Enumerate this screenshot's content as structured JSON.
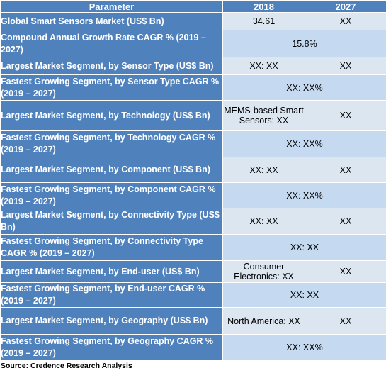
{
  "table": {
    "columns": [
      "Parameter",
      "2018",
      "2027"
    ],
    "rows": [
      {
        "parameter": "Global Smart Sensors Market (US$ Bn)",
        "y2018": "34.61",
        "y2027": "XX"
      },
      {
        "parameter": "Compound Annual Growth Rate CAGR % (2019 – 2027)",
        "merged": "15.8%"
      },
      {
        "parameter": "Largest Market Segment, by Sensor Type (US$ Bn)",
        "y2018": "XX: XX",
        "y2027": "XX"
      },
      {
        "parameter": "Fastest Growing Segment, by Sensor Type CAGR % (2019 – 2027)",
        "merged": "XX: XX%"
      },
      {
        "parameter": "Largest Market Segment, by Technology (US$ Bn)",
        "y2018": "MEMS-based Smart Sensors: XX",
        "y2027": "XX"
      },
      {
        "parameter": "Fastest Growing Segment, by Technology CAGR % (2019 – 2027)",
        "merged": "XX: XX%"
      },
      {
        "parameter": "Largest Market Segment, by Component (US$ Bn)",
        "y2018": "XX: XX",
        "y2027": "XX"
      },
      {
        "parameter": "Fastest Growing Segment, by Component CAGR % (2019 – 2027)",
        "merged": "XX: XX%"
      },
      {
        "parameter": "Largest Market Segment, by Connectivity Type (US$ Bn)",
        "y2018": "XX: XX",
        "y2027": "XX"
      },
      {
        "parameter": "Fastest Growing Segment, by Connectivity Type CAGR % (2019 – 2027)",
        "merged": "XX: XX"
      },
      {
        "parameter": "Largest Market Segment, by End-user (US$ Bn)",
        "y2018": "Consumer Electronics: XX",
        "y2027": "XX"
      },
      {
        "parameter": "Fastest Growing Segment, by End-user CAGR % (2019 – 2027)",
        "merged": "XX: XX"
      },
      {
        "parameter": "Largest Market Segment, by Geography (US$ Bn)",
        "y2018": "North America: XX",
        "y2027": "XX"
      },
      {
        "parameter": "Fastest Growing Segment, by Geography CAGR % (2019 – 2027)",
        "merged": "XX: XX%"
      }
    ]
  },
  "source": "Source: Credence Research Analysis",
  "colors": {
    "header_bg": "#4f81bd",
    "header_text": "#ffffff",
    "cell_light": "#dce6f1",
    "cell_dark": "#c5d9f1"
  }
}
